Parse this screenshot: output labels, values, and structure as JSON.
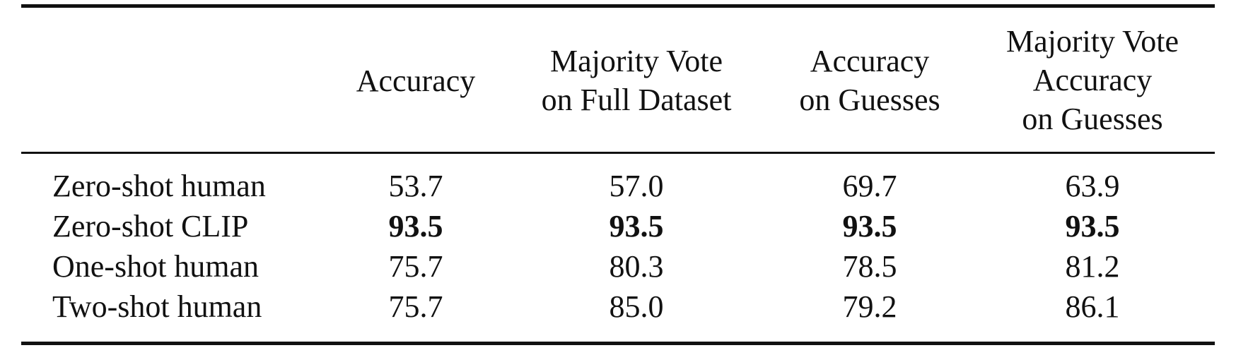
{
  "table": {
    "columns": [
      {
        "lines": [
          "Accuracy"
        ]
      },
      {
        "lines": [
          "Majority Vote",
          "on Full Dataset"
        ]
      },
      {
        "lines": [
          "Accuracy",
          "on Guesses"
        ]
      },
      {
        "lines": [
          "Majority Vote",
          "Accuracy",
          "on Guesses"
        ]
      }
    ],
    "rows": [
      {
        "label": "Zero-shot human",
        "values": [
          "53.7",
          "57.0",
          "69.7",
          "63.9"
        ],
        "bold": false
      },
      {
        "label": "Zero-shot CLIP",
        "values": [
          "93.5",
          "93.5",
          "93.5",
          "93.5"
        ],
        "bold": true
      },
      {
        "label": "One-shot human",
        "values": [
          "75.7",
          "80.3",
          "78.5",
          "81.2"
        ],
        "bold": false
      },
      {
        "label": "Two-shot human",
        "values": [
          "75.7",
          "85.0",
          "79.2",
          "86.1"
        ],
        "bold": false
      }
    ]
  }
}
